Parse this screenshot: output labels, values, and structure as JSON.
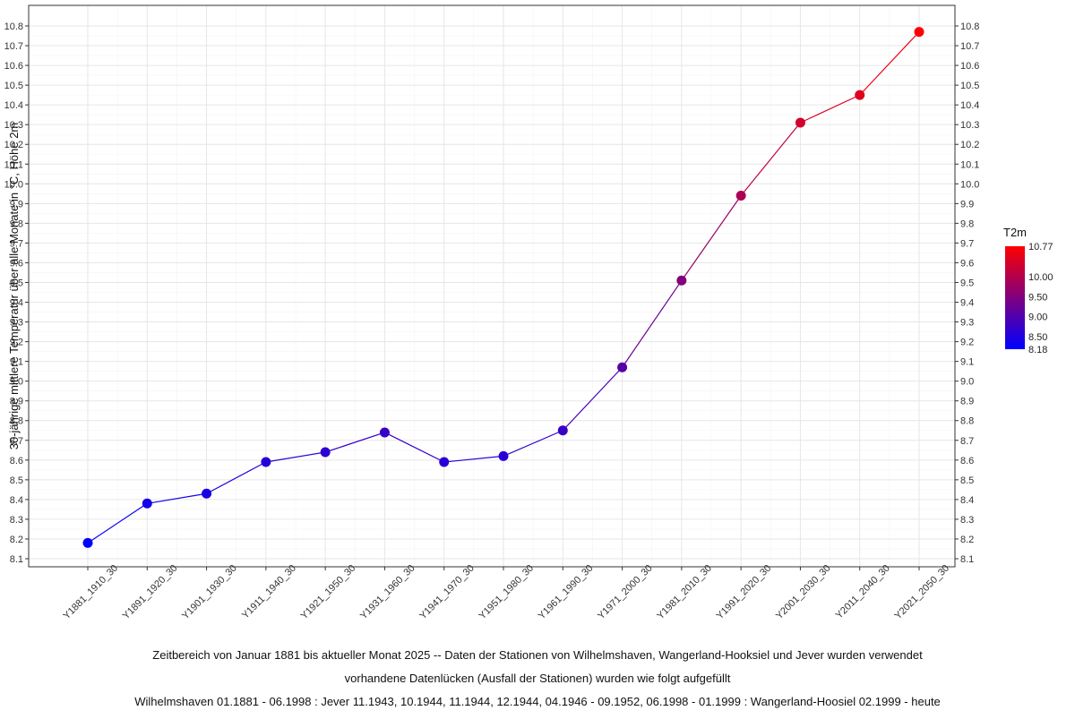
{
  "chart_data": {
    "type": "line",
    "title": "",
    "xlabel": "",
    "ylabel": "30-jährige mittlere Temperatur über alle Monate in °C, Höhe 2m",
    "categories": [
      "Y1881_1910_30",
      "Y1891_1920_30",
      "Y1901_1930_30",
      "Y1911_1940_30",
      "Y1921_1950_30",
      "Y1931_1960_30",
      "Y1941_1970_30",
      "Y1951_1980_30",
      "Y1961_1990_30",
      "Y1971_2000_30",
      "Y1981_2010_30",
      "Y1991_2020_30",
      "Y2001_2030_30",
      "Y2011_2040_30",
      "Y2021_2050_30"
    ],
    "series": [
      {
        "values": [
          8.18,
          8.38,
          8.43,
          8.59,
          8.64,
          8.74,
          8.59,
          8.62,
          8.75,
          9.07,
          9.51,
          9.94,
          10.31,
          10.45,
          10.77
        ]
      }
    ],
    "ylim": [
      8.1,
      10.8
    ],
    "y_ticks": [
      "8.1",
      "8.2",
      "8.3",
      "8.4",
      "8.5",
      "8.6",
      "8.7",
      "8.8",
      "8.9",
      "9.0",
      "9.1",
      "9.2",
      "9.3",
      "9.4",
      "9.5",
      "9.6",
      "9.7",
      "9.8",
      "9.9",
      "10.0",
      "10.1",
      "10.2",
      "10.3",
      "10.4",
      "10.5",
      "10.6",
      "10.7",
      "10.8"
    ],
    "secondary_y_axis": true,
    "grid": true,
    "legend": {
      "title": "T2m",
      "placement": "right",
      "type": "colorbar",
      "labels": [
        "10.77",
        "10.00",
        "9.50",
        "9.00",
        "8.50",
        "8.18"
      ],
      "values": [
        10.77,
        10.0,
        9.5,
        9.0,
        8.5,
        8.18
      ],
      "min": 8.18,
      "max": 10.77,
      "low_color": "#0000ff",
      "high_color": "#ff0000"
    },
    "caption_lines": [
      "Zeitbereich von Januar 1881 bis aktueller Monat 2025   --    Daten der Stationen von  Wilhelmshaven, Wangerland-Hooksiel und Jever wurden verwendet",
      "vorhandene Datenlücken (Ausfall der Stationen) wurden wie folgt aufgefüllt",
      "Wilhelmshaven 01.1881 - 06.1998 : Jever 11.1943, 10.1944, 11.1944, 12.1944, 04.1946 - 09.1952, 06.1998 - 01.1999 : Wangerland-Hoosiel 02.1999 - heute"
    ]
  }
}
